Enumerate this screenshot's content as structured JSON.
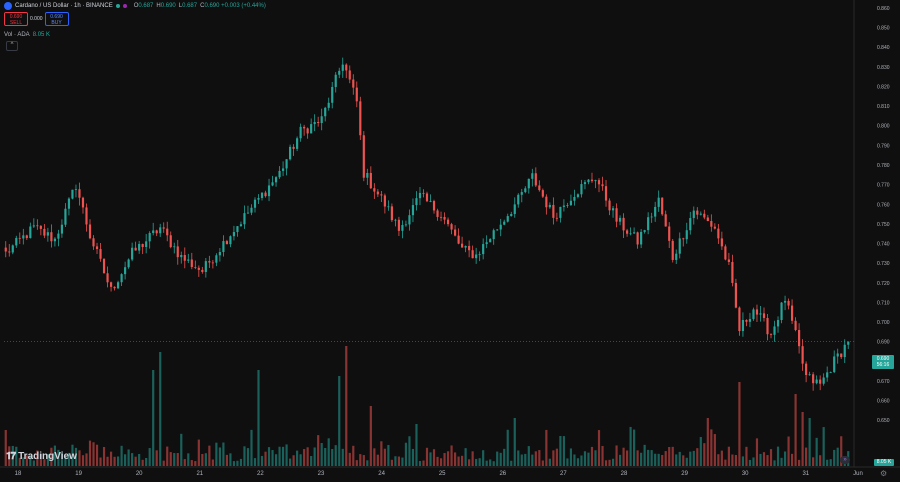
{
  "header": {
    "title": "Cardano / US Dollar · 1h · BINANCE",
    "ohlc": [
      {
        "key": "O",
        "value": "0.687"
      },
      {
        "key": "H",
        "value": "0.690"
      },
      {
        "key": "L",
        "value": "0.687"
      },
      {
        "key": "C",
        "value": "0.690 +0.003 (+0.44%)"
      }
    ]
  },
  "trade": {
    "sell_price": "0.690",
    "sell_label": "SELL",
    "spread": "0.000",
    "buy_price": "0.690",
    "buy_label": "BUY"
  },
  "volume_legend": {
    "label": "Vol · ADA",
    "value": "8.05 K"
  },
  "collapse_icon": "chevron-up-icon",
  "branding": "TradingView",
  "price_tag": {
    "price": "0.690",
    "countdown": "56:16"
  },
  "volume_tag": "8.05 K",
  "colors": {
    "up": "#26a69a",
    "down": "#ef5350",
    "background": "#0f0f0f",
    "grid": "#1a1a1a",
    "axis_text": "#b2b5be"
  },
  "chart_data": {
    "type": "candlestick",
    "symbol": "ADAUSD",
    "timeframe": "1h",
    "exchange": "BINANCE",
    "x_labels": [
      "18",
      "19",
      "20",
      "21",
      "22",
      "23",
      "24",
      "25",
      "26",
      "27",
      "28",
      "29",
      "30",
      "31",
      "Jun"
    ],
    "y_ticks": [
      "0.860",
      "0.850",
      "0.840",
      "0.830",
      "0.820",
      "0.810",
      "0.800",
      "0.790",
      "0.780",
      "0.770",
      "0.760",
      "0.750",
      "0.740",
      "0.730",
      "0.720",
      "0.710",
      "0.700",
      "0.690",
      "0.680",
      "0.670",
      "0.660",
      "0.650"
    ],
    "ylim": [
      0.645,
      0.861
    ],
    "grid": false,
    "hours": 240,
    "close_anchors": [
      [
        0,
        0.735
      ],
      [
        8,
        0.748
      ],
      [
        14,
        0.742
      ],
      [
        20,
        0.77
      ],
      [
        24,
        0.744
      ],
      [
        30,
        0.716
      ],
      [
        36,
        0.735
      ],
      [
        44,
        0.748
      ],
      [
        50,
        0.733
      ],
      [
        56,
        0.726
      ],
      [
        64,
        0.745
      ],
      [
        70,
        0.758
      ],
      [
        78,
        0.776
      ],
      [
        84,
        0.797
      ],
      [
        90,
        0.803
      ],
      [
        96,
        0.833
      ],
      [
        100,
        0.812
      ],
      [
        102,
        0.776
      ],
      [
        108,
        0.76
      ],
      [
        112,
        0.747
      ],
      [
        118,
        0.764
      ],
      [
        124,
        0.755
      ],
      [
        130,
        0.737
      ],
      [
        134,
        0.734
      ],
      [
        140,
        0.748
      ],
      [
        146,
        0.762
      ],
      [
        150,
        0.774
      ],
      [
        156,
        0.754
      ],
      [
        162,
        0.766
      ],
      [
        168,
        0.774
      ],
      [
        174,
        0.752
      ],
      [
        180,
        0.741
      ],
      [
        186,
        0.762
      ],
      [
        190,
        0.733
      ],
      [
        196,
        0.757
      ],
      [
        202,
        0.748
      ],
      [
        206,
        0.728
      ],
      [
        209,
        0.696
      ],
      [
        213,
        0.707
      ],
      [
        218,
        0.694
      ],
      [
        222,
        0.712
      ],
      [
        225,
        0.693
      ],
      [
        228,
        0.672
      ],
      [
        232,
        0.668
      ],
      [
        236,
        0.68
      ],
      [
        240,
        0.69
      ]
    ],
    "volume_spikes": [
      [
        0,
        0.3
      ],
      [
        42,
        0.8
      ],
      [
        44,
        0.95
      ],
      [
        72,
        0.8
      ],
      [
        95,
        0.75
      ],
      [
        97,
        1.0
      ],
      [
        104,
        0.5
      ],
      [
        117,
        0.35
      ],
      [
        145,
        0.4
      ],
      [
        158,
        0.25
      ],
      [
        200,
        0.4
      ],
      [
        209,
        0.7
      ],
      [
        225,
        0.6
      ],
      [
        227,
        0.45
      ],
      [
        229,
        0.4
      ]
    ],
    "last_price": 0.69,
    "last_volume": "8.05 K"
  }
}
